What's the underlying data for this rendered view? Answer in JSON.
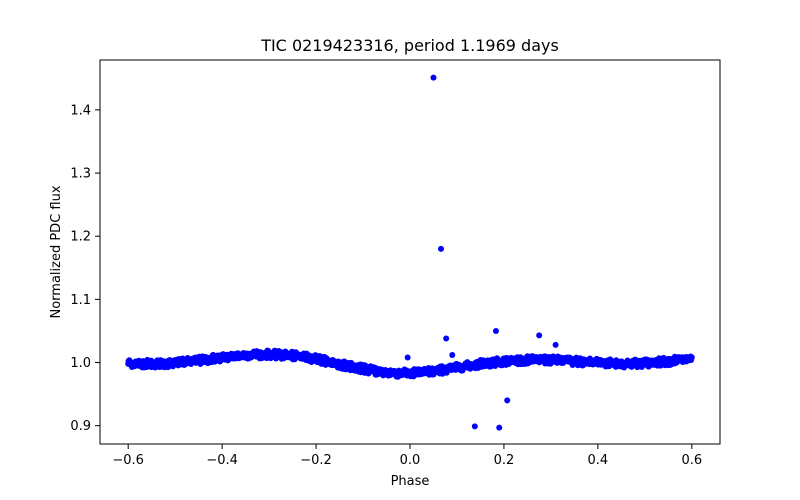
{
  "chart_data": {
    "type": "scatter",
    "title": "TIC 0219423316, period 1.1969 days",
    "xlabel": "Phase",
    "ylabel": "Normalized PDC flux",
    "xlim": [
      -0.66,
      0.66
    ],
    "ylim": [
      0.871,
      1.479
    ],
    "xticks": [
      -0.6,
      -0.4,
      -0.2,
      0.0,
      0.2,
      0.4,
      0.6
    ],
    "xtick_labels": [
      "−0.6",
      "−0.4",
      "−0.2",
      "0.0",
      "0.2",
      "0.4",
      "0.6"
    ],
    "yticks": [
      0.9,
      1.0,
      1.1,
      1.2,
      1.3,
      1.4
    ],
    "ytick_labels": [
      "0.9",
      "1.0",
      "1.1",
      "1.2",
      "1.3",
      "1.4"
    ],
    "marker_color": "#0000ff",
    "baseline_curve": {
      "description": "dense band of points following this smoothed trend",
      "x": [
        -0.6,
        -0.55,
        -0.5,
        -0.45,
        -0.4,
        -0.35,
        -0.3,
        -0.25,
        -0.2,
        -0.15,
        -0.1,
        -0.05,
        0.0,
        0.05,
        0.1,
        0.15,
        0.2,
        0.25,
        0.3,
        0.35,
        0.4,
        0.45,
        0.5,
        0.55,
        0.6
      ],
      "y": [
        0.999,
        0.998,
        0.999,
        1.003,
        1.008,
        1.012,
        1.013,
        1.011,
        1.006,
        0.997,
        0.99,
        0.984,
        0.983,
        0.986,
        0.992,
        0.998,
        1.002,
        1.004,
        1.004,
        1.002,
        1.0,
        0.998,
        0.999,
        1.002,
        1.006
      ],
      "scatter": 0.006
    },
    "outliers": {
      "x": [
        0.05,
        0.066,
        0.077,
        0.183,
        0.275,
        0.31,
        0.138,
        0.19,
        0.207,
        -0.005,
        0.09
      ],
      "y": [
        1.451,
        1.18,
        1.038,
        1.05,
        1.043,
        1.028,
        0.899,
        0.897,
        0.94,
        1.008,
        1.012
      ]
    }
  }
}
